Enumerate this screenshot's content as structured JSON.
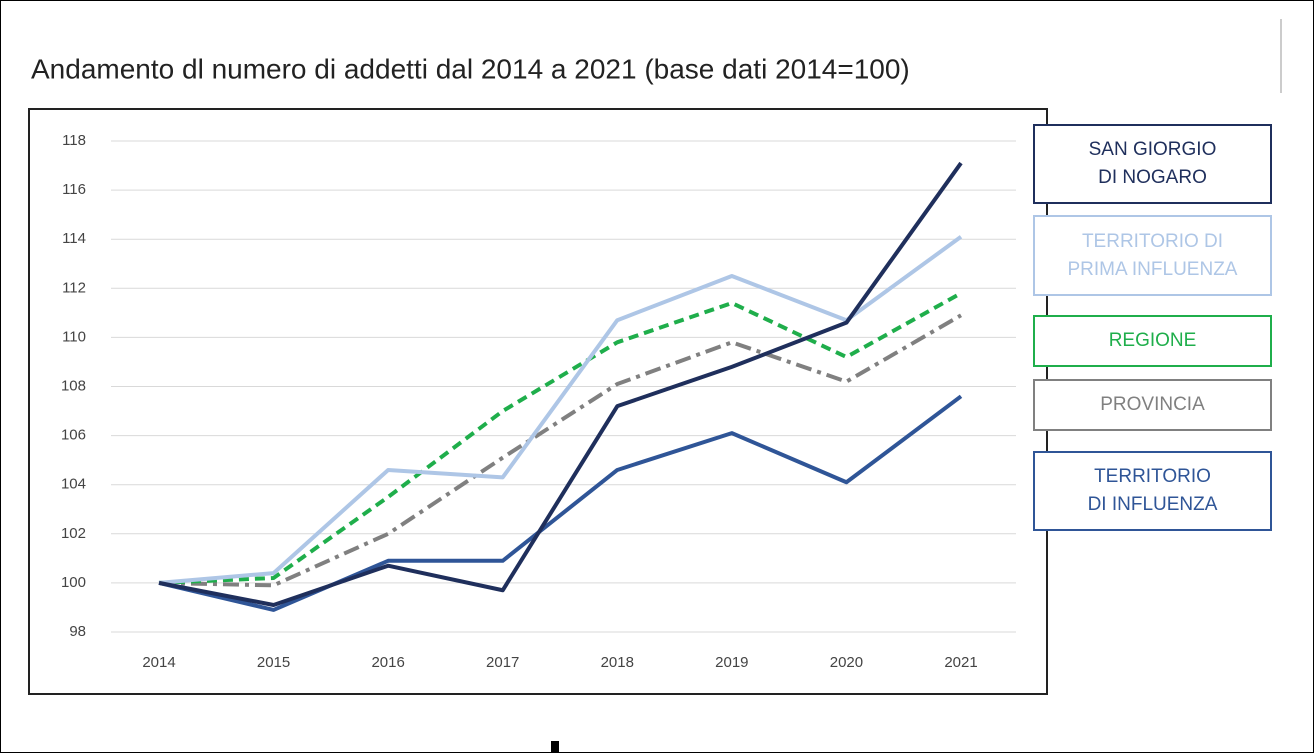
{
  "chart_data": {
    "type": "line",
    "title": "Andamento dl numero di addetti dal 2014 a 2021 (base dati 2014=100)",
    "categories": [
      "2014",
      "2015",
      "2016",
      "2017",
      "2018",
      "2019",
      "2020",
      "2021"
    ],
    "ylim": [
      98,
      118
    ],
    "yticks": [
      98,
      100,
      102,
      104,
      106,
      108,
      110,
      112,
      114,
      116,
      118
    ],
    "grid": true,
    "series": [
      {
        "name": "SAN GIORGIO\nDI NOGARO",
        "color": "#1f2f5c",
        "dash": "solid",
        "values": [
          100,
          99.1,
          100.7,
          99.7,
          107.2,
          108.8,
          110.6,
          117.1
        ]
      },
      {
        "name": "TERRITORIO DI\nPRIMA INFLUENZA",
        "color": "#aec6e6",
        "dash": "solid",
        "values": [
          100,
          100.4,
          104.6,
          104.3,
          110.7,
          112.5,
          110.7,
          114.1
        ]
      },
      {
        "name": "REGIONE",
        "color": "#1fae4b",
        "dash": "dashed",
        "values": [
          100,
          100.2,
          103.5,
          107.0,
          109.8,
          111.4,
          109.2,
          111.8
        ]
      },
      {
        "name": "PROVINCIA",
        "color": "#808080",
        "dash": "dashdot",
        "values": [
          100,
          99.9,
          102.0,
          105.1,
          108.1,
          109.8,
          108.2,
          110.9
        ]
      },
      {
        "name": "TERRITORIO\nDI INFLUENZA",
        "color": "#2f5597",
        "dash": "solid",
        "values": [
          100,
          98.9,
          100.9,
          100.9,
          104.6,
          106.1,
          104.1,
          107.6
        ]
      }
    ]
  }
}
